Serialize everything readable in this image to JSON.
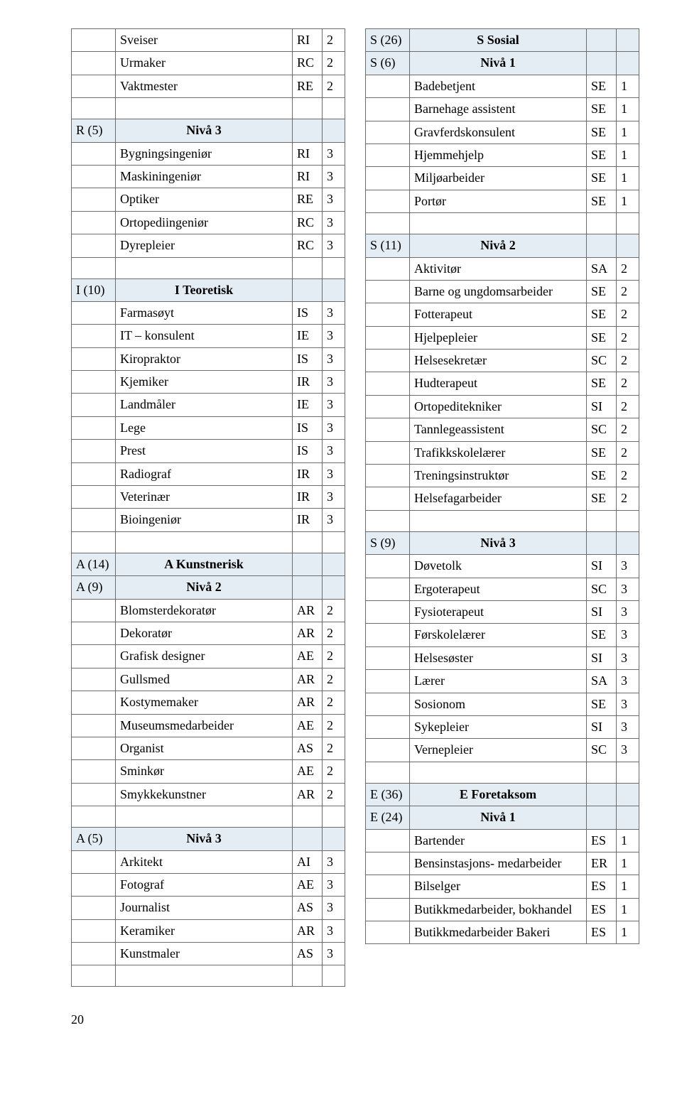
{
  "colors": {
    "border": "#6c6c6c",
    "section_bg": "#e4ecf4",
    "page_bg": "#ffffff",
    "text": "#000000"
  },
  "page_number": "20",
  "left": [
    {
      "t": "row",
      "c1": "",
      "c2": "Sveiser",
      "c3": "RI",
      "c4": "2"
    },
    {
      "t": "row",
      "c1": "",
      "c2": "Urmaker",
      "c3": "RC",
      "c4": "2"
    },
    {
      "t": "row",
      "c1": "",
      "c2": "Vaktmester",
      "c3": "RE",
      "c4": "2"
    },
    {
      "t": "spacer"
    },
    {
      "t": "section",
      "c1": "R (5)",
      "c2": "Nivå 3",
      "c3": "",
      "c4": ""
    },
    {
      "t": "row",
      "c1": "",
      "c2": "Bygningsingeniør",
      "c3": "RI",
      "c4": "3"
    },
    {
      "t": "row",
      "c1": "",
      "c2": "Maskiningeniør",
      "c3": "RI",
      "c4": "3"
    },
    {
      "t": "row",
      "c1": "",
      "c2": "Optiker",
      "c3": "RE",
      "c4": "3"
    },
    {
      "t": "row",
      "c1": "",
      "c2": "Ortopediingeniør",
      "c3": "RC",
      "c4": "3"
    },
    {
      "t": "row",
      "c1": "",
      "c2": "Dyrepleier",
      "c3": "RC",
      "c4": "3"
    },
    {
      "t": "spacer"
    },
    {
      "t": "section",
      "c1": "I (10)",
      "c2": "I Teoretisk",
      "c3": "",
      "c4": ""
    },
    {
      "t": "row",
      "c1": "",
      "c2": "Farmasøyt",
      "c3": "IS",
      "c4": "3"
    },
    {
      "t": "row",
      "c1": "",
      "c2": "IT – konsulent",
      "c3": "IE",
      "c4": "3"
    },
    {
      "t": "row",
      "c1": "",
      "c2": "Kiropraktor",
      "c3": "IS",
      "c4": "3"
    },
    {
      "t": "row",
      "c1": "",
      "c2": "Kjemiker",
      "c3": "IR",
      "c4": "3"
    },
    {
      "t": "row",
      "c1": "",
      "c2": "Landmåler",
      "c3": "IE",
      "c4": "3"
    },
    {
      "t": "row",
      "c1": "",
      "c2": "Lege",
      "c3": "IS",
      "c4": "3"
    },
    {
      "t": "row",
      "c1": "",
      "c2": "Prest",
      "c3": "IS",
      "c4": "3"
    },
    {
      "t": "row",
      "c1": "",
      "c2": "Radiograf",
      "c3": "IR",
      "c4": "3"
    },
    {
      "t": "row",
      "c1": "",
      "c2": "Veterinær",
      "c3": "IR",
      "c4": "3"
    },
    {
      "t": "row",
      "c1": "",
      "c2": "Bioingeniør",
      "c3": "IR",
      "c4": "3"
    },
    {
      "t": "spacer"
    },
    {
      "t": "section",
      "c1": "A (14)",
      "c2": "A Kunstnerisk",
      "c3": "",
      "c4": ""
    },
    {
      "t": "section",
      "c1": "A (9)",
      "c2": "Nivå 2",
      "c3": "",
      "c4": ""
    },
    {
      "t": "row",
      "c1": "",
      "c2": "Blomsterdekoratør",
      "c3": "AR",
      "c4": "2"
    },
    {
      "t": "row",
      "c1": "",
      "c2": "Dekoratør",
      "c3": "AR",
      "c4": "2"
    },
    {
      "t": "row",
      "c1": "",
      "c2": "Grafisk designer",
      "c3": "AE",
      "c4": "2"
    },
    {
      "t": "row",
      "c1": "",
      "c2": "Gullsmed",
      "c3": "AR",
      "c4": "2"
    },
    {
      "t": "row",
      "c1": "",
      "c2": "Kostymemaker",
      "c3": "AR",
      "c4": "2"
    },
    {
      "t": "row",
      "c1": "",
      "c2": "Museumsmedarbeider",
      "c3": "AE",
      "c4": "2"
    },
    {
      "t": "row",
      "c1": "",
      "c2": "Organist",
      "c3": "AS",
      "c4": "2"
    },
    {
      "t": "row",
      "c1": "",
      "c2": "Sminkør",
      "c3": "AE",
      "c4": "2"
    },
    {
      "t": "row",
      "c1": "",
      "c2": "Smykkekunstner",
      "c3": "AR",
      "c4": "2"
    },
    {
      "t": "spacer"
    },
    {
      "t": "section",
      "c1": "A (5)",
      "c2": "Nivå 3",
      "c3": "",
      "c4": ""
    },
    {
      "t": "row",
      "c1": "",
      "c2": "Arkitekt",
      "c3": "AI",
      "c4": "3"
    },
    {
      "t": "row",
      "c1": "",
      "c2": "Fotograf",
      "c3": "AE",
      "c4": "3"
    },
    {
      "t": "row",
      "c1": "",
      "c2": "Journalist",
      "c3": "AS",
      "c4": "3"
    },
    {
      "t": "row",
      "c1": "",
      "c2": "Keramiker",
      "c3": "AR",
      "c4": "3"
    },
    {
      "t": "row",
      "c1": "",
      "c2": "Kunstmaler",
      "c3": "AS",
      "c4": "3"
    },
    {
      "t": "spacer"
    }
  ],
  "right": [
    {
      "t": "section",
      "c1": "S (26)",
      "c2": "S Sosial",
      "c3": "",
      "c4": ""
    },
    {
      "t": "section",
      "c1": "S (6)",
      "c2": "Nivå 1",
      "c3": "",
      "c4": ""
    },
    {
      "t": "row",
      "c1": "",
      "c2": "Badebetjent",
      "c3": "SE",
      "c4": "1"
    },
    {
      "t": "row",
      "c1": "",
      "c2": "Barnehage assistent",
      "c3": "SE",
      "c4": "1"
    },
    {
      "t": "row",
      "c1": "",
      "c2": "Gravferdskonsulent",
      "c3": "SE",
      "c4": "1"
    },
    {
      "t": "row",
      "c1": "",
      "c2": "Hjemmehjelp",
      "c3": "SE",
      "c4": "1"
    },
    {
      "t": "row",
      "c1": "",
      "c2": "Miljøarbeider",
      "c3": "SE",
      "c4": "1"
    },
    {
      "t": "row",
      "c1": "",
      "c2": "Portør",
      "c3": "SE",
      "c4": "1"
    },
    {
      "t": "spacer"
    },
    {
      "t": "section",
      "c1": "S (11)",
      "c2": "Nivå 2",
      "c3": "",
      "c4": ""
    },
    {
      "t": "row",
      "c1": "",
      "c2": "Aktivitør",
      "c3": "SA",
      "c4": "2"
    },
    {
      "t": "row",
      "c1": "",
      "c2": "Barne og ungdomsarbeider",
      "c3": "SE",
      "c4": "2"
    },
    {
      "t": "row",
      "c1": "",
      "c2": "Fotterapeut",
      "c3": "SE",
      "c4": "2"
    },
    {
      "t": "row",
      "c1": "",
      "c2": "Hjelpepleier",
      "c3": "SE",
      "c4": "2"
    },
    {
      "t": "row",
      "c1": "",
      "c2": "Helsesekretær",
      "c3": "SC",
      "c4": "2"
    },
    {
      "t": "row",
      "c1": "",
      "c2": "Hudterapeut",
      "c3": "SE",
      "c4": "2"
    },
    {
      "t": "row",
      "c1": "",
      "c2": "Ortopeditekniker",
      "c3": "SI",
      "c4": "2"
    },
    {
      "t": "row",
      "c1": "",
      "c2": "Tannlegeassistent",
      "c3": "SC",
      "c4": "2"
    },
    {
      "t": "row",
      "c1": "",
      "c2": "Trafikkskolelærer",
      "c3": "SE",
      "c4": "2"
    },
    {
      "t": "row",
      "c1": "",
      "c2": "Treningsinstruktør",
      "c3": "SE",
      "c4": "2"
    },
    {
      "t": "row",
      "c1": "",
      "c2": "Helsefagarbeider",
      "c3": "SE",
      "c4": "2"
    },
    {
      "t": "spacer"
    },
    {
      "t": "section",
      "c1": "S (9)",
      "c2": "Nivå 3",
      "c3": "",
      "c4": ""
    },
    {
      "t": "row",
      "c1": "",
      "c2": "Døvetolk",
      "c3": "SI",
      "c4": "3"
    },
    {
      "t": "row",
      "c1": "",
      "c2": "Ergoterapeut",
      "c3": "SC",
      "c4": "3"
    },
    {
      "t": "row",
      "c1": "",
      "c2": "Fysioterapeut",
      "c3": "SI",
      "c4": "3"
    },
    {
      "t": "row",
      "c1": "",
      "c2": "Førskolelærer",
      "c3": "SE",
      "c4": "3"
    },
    {
      "t": "row",
      "c1": "",
      "c2": "Helsesøster",
      "c3": "SI",
      "c4": "3"
    },
    {
      "t": "row",
      "c1": "",
      "c2": "Lærer",
      "c3": "SA",
      "c4": "3"
    },
    {
      "t": "row",
      "c1": "",
      "c2": "Sosionom",
      "c3": "SE",
      "c4": "3"
    },
    {
      "t": "row",
      "c1": "",
      "c2": "Sykepleier",
      "c3": "SI",
      "c4": "3"
    },
    {
      "t": "row",
      "c1": "",
      "c2": "Vernepleier",
      "c3": "SC",
      "c4": "3"
    },
    {
      "t": "spacer"
    },
    {
      "t": "section",
      "c1": "E (36)",
      "c2": "E Foretaksom",
      "c3": "",
      "c4": ""
    },
    {
      "t": "section",
      "c1": "E (24)",
      "c2": "Nivå 1",
      "c3": "",
      "c4": ""
    },
    {
      "t": "row",
      "c1": "",
      "c2": "Bartender",
      "c3": "ES",
      "c4": "1"
    },
    {
      "t": "row",
      "c1": "",
      "c2": "Bensinstasjons-\nmedarbeider",
      "c3": "ER",
      "c4": "1"
    },
    {
      "t": "row",
      "c1": "",
      "c2": "Bilselger",
      "c3": "ES",
      "c4": "1"
    },
    {
      "t": "row",
      "c1": "",
      "c2": "Butikkmedarbeider, bokhandel",
      "c3": "ES",
      "c4": "1"
    },
    {
      "t": "row",
      "c1": "",
      "c2": "Butikkmedarbeider Bakeri",
      "c3": "ES",
      "c4": "1"
    }
  ]
}
